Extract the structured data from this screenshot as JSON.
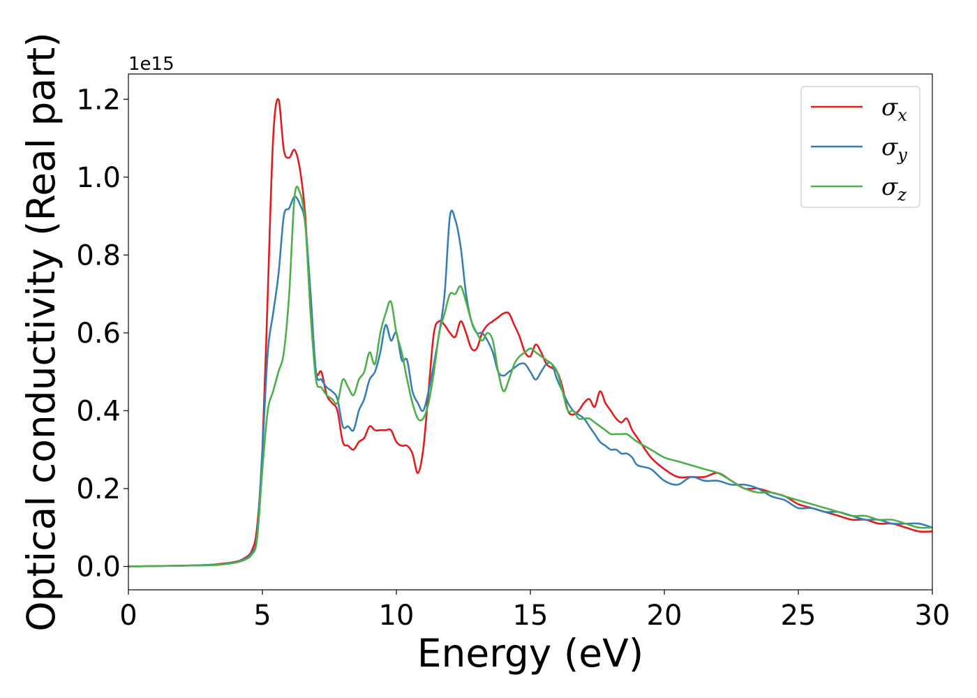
{
  "chart_data": {
    "type": "line",
    "title": "",
    "xlabel": "Energy (eV)",
    "ylabel": "Optical conductivity (Real part)",
    "offset_text": "1e15",
    "xlim": [
      0,
      30
    ],
    "ylim": [
      -0.06,
      1.265
    ],
    "xticks": [
      0,
      5,
      10,
      15,
      20,
      25,
      30
    ],
    "yticks": [
      0.0,
      0.2,
      0.4,
      0.6,
      0.8,
      1.0,
      1.2
    ],
    "ytick_labels": [
      "0.0",
      "0.2",
      "0.4",
      "0.6",
      "0.8",
      "1.0",
      "1.2"
    ],
    "grid": false,
    "legend": "top-right",
    "series": [
      {
        "name": "σx",
        "symbol": "σ",
        "subscript": "x",
        "color": "#e41a1c",
        "x": [
          0,
          1,
          2,
          3,
          3.5,
          4,
          4.3,
          4.6,
          4.8,
          5.0,
          5.2,
          5.4,
          5.6,
          5.8,
          6.0,
          6.2,
          6.4,
          6.6,
          6.8,
          7.0,
          7.2,
          7.4,
          7.6,
          7.8,
          8.0,
          8.2,
          8.4,
          8.6,
          8.8,
          9.0,
          9.2,
          9.4,
          9.6,
          9.8,
          10.0,
          10.2,
          10.4,
          10.6,
          10.8,
          11.0,
          11.2,
          11.4,
          11.6,
          11.8,
          12.0,
          12.2,
          12.4,
          12.6,
          12.8,
          13.0,
          13.2,
          13.4,
          13.6,
          13.8,
          14.0,
          14.2,
          14.4,
          14.6,
          14.8,
          15.0,
          15.2,
          15.4,
          15.6,
          15.8,
          16.0,
          16.2,
          16.4,
          16.6,
          16.8,
          17.0,
          17.2,
          17.4,
          17.6,
          17.8,
          18.0,
          18.2,
          18.4,
          18.6,
          18.8,
          19.0,
          19.5,
          20.0,
          20.5,
          21.0,
          21.5,
          22.0,
          22.5,
          23.0,
          23.5,
          24.0,
          24.5,
          25.0,
          25.5,
          26.0,
          26.5,
          27.0,
          27.5,
          28.0,
          28.5,
          29.0,
          29.5,
          30.0
        ],
        "y": [
          0,
          0.001,
          0.002,
          0.004,
          0.007,
          0.012,
          0.02,
          0.04,
          0.1,
          0.3,
          0.7,
          1.1,
          1.2,
          1.07,
          1.05,
          1.07,
          1.02,
          0.9,
          0.65,
          0.5,
          0.5,
          0.44,
          0.42,
          0.4,
          0.32,
          0.31,
          0.3,
          0.32,
          0.33,
          0.36,
          0.35,
          0.35,
          0.35,
          0.35,
          0.32,
          0.31,
          0.31,
          0.29,
          0.24,
          0.3,
          0.45,
          0.6,
          0.63,
          0.62,
          0.6,
          0.59,
          0.63,
          0.6,
          0.56,
          0.56,
          0.6,
          0.62,
          0.63,
          0.64,
          0.65,
          0.65,
          0.62,
          0.59,
          0.55,
          0.54,
          0.57,
          0.55,
          0.52,
          0.51,
          0.5,
          0.46,
          0.4,
          0.39,
          0.4,
          0.42,
          0.43,
          0.41,
          0.45,
          0.42,
          0.4,
          0.38,
          0.37,
          0.38,
          0.35,
          0.33,
          0.28,
          0.25,
          0.23,
          0.23,
          0.23,
          0.24,
          0.22,
          0.2,
          0.2,
          0.19,
          0.18,
          0.16,
          0.15,
          0.14,
          0.13,
          0.12,
          0.12,
          0.11,
          0.11,
          0.1,
          0.09,
          0.09
        ]
      },
      {
        "name": "σy",
        "symbol": "σ",
        "subscript": "y",
        "color": "#377eb8",
        "x": [
          0,
          1,
          2,
          3,
          3.5,
          4,
          4.3,
          4.6,
          4.8,
          5.0,
          5.2,
          5.4,
          5.6,
          5.8,
          6.0,
          6.2,
          6.4,
          6.6,
          6.8,
          7.0,
          7.2,
          7.4,
          7.6,
          7.8,
          8.0,
          8.2,
          8.4,
          8.6,
          8.8,
          9.0,
          9.2,
          9.4,
          9.6,
          9.8,
          10.0,
          10.2,
          10.4,
          10.6,
          10.8,
          11.0,
          11.2,
          11.4,
          11.6,
          11.8,
          12.0,
          12.2,
          12.4,
          12.6,
          12.8,
          13.0,
          13.2,
          13.4,
          13.6,
          13.8,
          14.0,
          14.2,
          14.4,
          14.6,
          14.8,
          15.0,
          15.2,
          15.4,
          15.6,
          15.8,
          16.0,
          16.2,
          16.4,
          16.6,
          16.8,
          17.0,
          17.2,
          17.4,
          17.6,
          17.8,
          18.0,
          18.2,
          18.4,
          18.6,
          18.8,
          19.0,
          19.5,
          20.0,
          20.5,
          21.0,
          21.5,
          22.0,
          22.5,
          23.0,
          23.5,
          24.0,
          24.5,
          25.0,
          25.5,
          26.0,
          26.5,
          27.0,
          27.5,
          28.0,
          28.5,
          29.0,
          29.5,
          30.0
        ],
        "y": [
          0,
          0.001,
          0.002,
          0.004,
          0.006,
          0.011,
          0.018,
          0.035,
          0.08,
          0.3,
          0.55,
          0.65,
          0.75,
          0.9,
          0.92,
          0.95,
          0.93,
          0.88,
          0.7,
          0.5,
          0.48,
          0.46,
          0.45,
          0.43,
          0.36,
          0.36,
          0.35,
          0.4,
          0.43,
          0.48,
          0.5,
          0.55,
          0.62,
          0.58,
          0.6,
          0.53,
          0.53,
          0.45,
          0.42,
          0.4,
          0.45,
          0.52,
          0.6,
          0.7,
          0.9,
          0.89,
          0.82,
          0.7,
          0.63,
          0.6,
          0.6,
          0.58,
          0.55,
          0.5,
          0.49,
          0.5,
          0.51,
          0.52,
          0.52,
          0.5,
          0.48,
          0.5,
          0.52,
          0.52,
          0.48,
          0.45,
          0.42,
          0.4,
          0.39,
          0.38,
          0.36,
          0.34,
          0.32,
          0.31,
          0.3,
          0.3,
          0.29,
          0.29,
          0.28,
          0.26,
          0.25,
          0.22,
          0.21,
          0.23,
          0.22,
          0.22,
          0.21,
          0.21,
          0.2,
          0.18,
          0.17,
          0.15,
          0.15,
          0.14,
          0.14,
          0.13,
          0.12,
          0.12,
          0.11,
          0.11,
          0.11,
          0.1
        ]
      },
      {
        "name": "σz",
        "symbol": "σ",
        "subscript": "z",
        "color": "#4daf4a",
        "x": [
          0,
          1,
          2,
          3,
          3.5,
          4,
          4.3,
          4.6,
          4.8,
          5.0,
          5.2,
          5.4,
          5.6,
          5.8,
          6.0,
          6.2,
          6.4,
          6.6,
          6.8,
          7.0,
          7.2,
          7.4,
          7.6,
          7.8,
          8.0,
          8.2,
          8.4,
          8.6,
          8.8,
          9.0,
          9.2,
          9.4,
          9.6,
          9.8,
          10.0,
          10.2,
          10.4,
          10.6,
          10.8,
          11.0,
          11.2,
          11.4,
          11.6,
          11.8,
          12.0,
          12.2,
          12.4,
          12.6,
          12.8,
          13.0,
          13.2,
          13.4,
          13.6,
          13.8,
          14.0,
          14.2,
          14.4,
          14.6,
          14.8,
          15.0,
          15.2,
          15.4,
          15.6,
          15.8,
          16.0,
          16.2,
          16.4,
          16.6,
          16.8,
          17.0,
          17.2,
          17.4,
          17.6,
          17.8,
          18.0,
          18.2,
          18.4,
          18.6,
          18.8,
          19.0,
          19.5,
          20.0,
          20.5,
          21.0,
          21.5,
          22.0,
          22.5,
          23.0,
          23.5,
          24.0,
          24.5,
          25.0,
          25.5,
          26.0,
          26.5,
          27.0,
          27.5,
          28.0,
          28.5,
          29.0,
          29.5,
          30.0
        ],
        "y": [
          0,
          0.001,
          0.002,
          0.003,
          0.005,
          0.01,
          0.016,
          0.03,
          0.07,
          0.25,
          0.4,
          0.45,
          0.5,
          0.55,
          0.7,
          0.95,
          0.96,
          0.88,
          0.65,
          0.48,
          0.46,
          0.44,
          0.43,
          0.42,
          0.48,
          0.46,
          0.44,
          0.48,
          0.5,
          0.55,
          0.52,
          0.6,
          0.65,
          0.68,
          0.6,
          0.55,
          0.48,
          0.42,
          0.38,
          0.38,
          0.42,
          0.5,
          0.6,
          0.65,
          0.7,
          0.7,
          0.72,
          0.68,
          0.63,
          0.6,
          0.58,
          0.6,
          0.58,
          0.5,
          0.45,
          0.48,
          0.52,
          0.54,
          0.55,
          0.56,
          0.55,
          0.54,
          0.53,
          0.52,
          0.5,
          0.45,
          0.4,
          0.4,
          0.38,
          0.38,
          0.38,
          0.37,
          0.36,
          0.35,
          0.34,
          0.34,
          0.34,
          0.34,
          0.33,
          0.32,
          0.3,
          0.28,
          0.27,
          0.26,
          0.25,
          0.24,
          0.22,
          0.2,
          0.19,
          0.19,
          0.18,
          0.17,
          0.16,
          0.15,
          0.14,
          0.13,
          0.13,
          0.12,
          0.12,
          0.11,
          0.1,
          0.1
        ]
      }
    ]
  }
}
